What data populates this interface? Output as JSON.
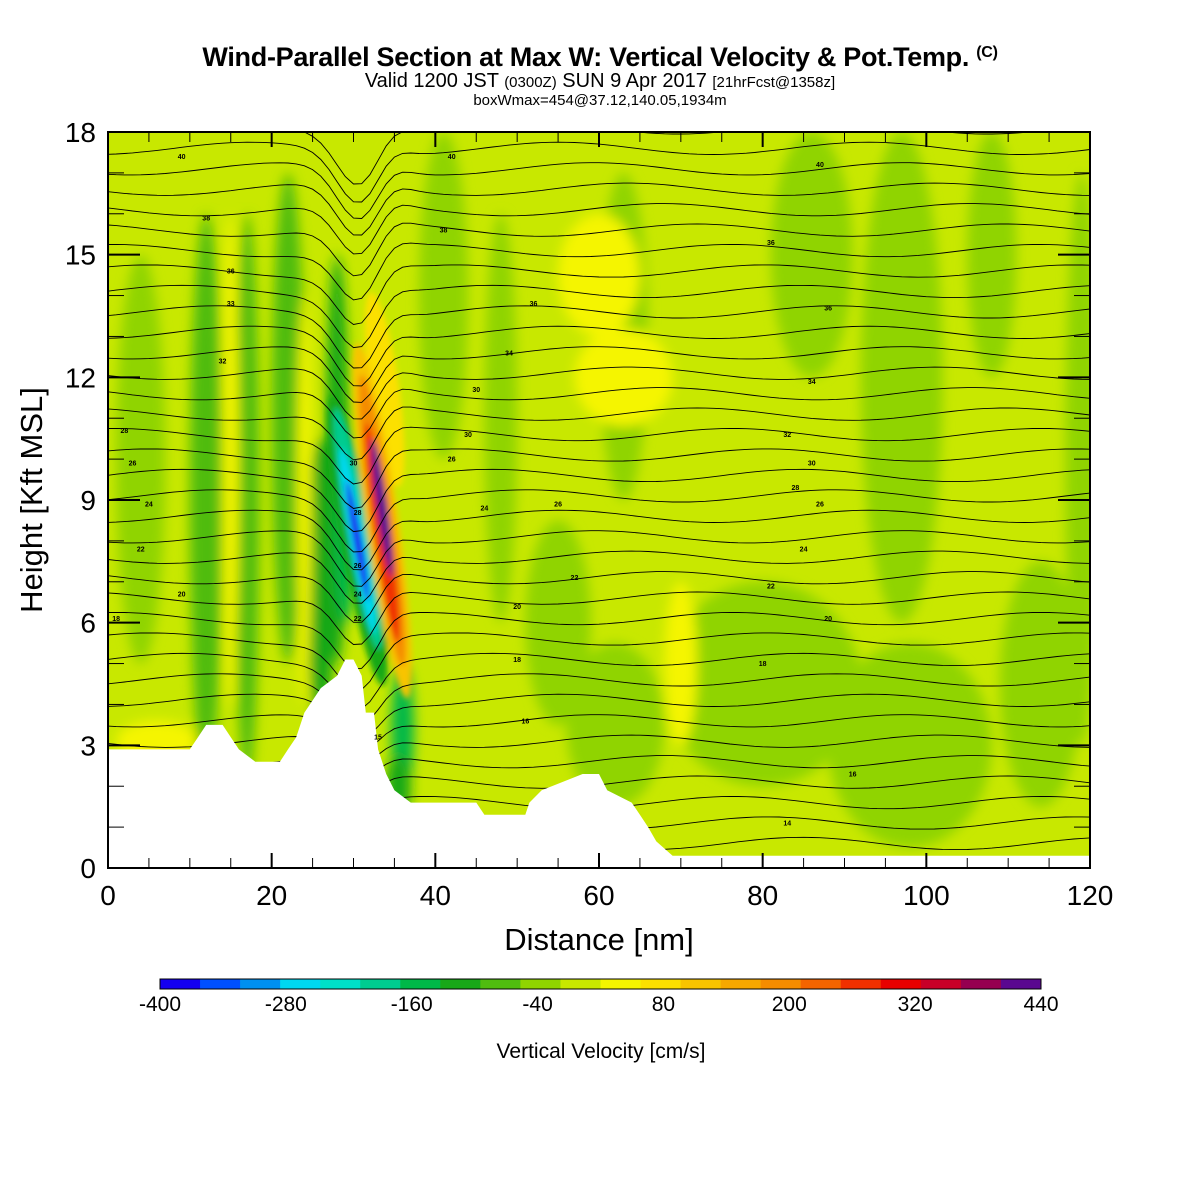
{
  "title": {
    "main": "Wind-Parallel Section at Max W: Vertical Velocity & Pot.Temp.",
    "copyright": "(C)",
    "valid_prefix": "Valid 1200 JST",
    "valid_utc": "(0300Z)",
    "valid_date": "SUN 9 Apr 2017",
    "forecast": "[21hrFcst@1358z]",
    "box": "boxWmax=454@37.12,140.05,1934m"
  },
  "chart_data": {
    "type": "heatmap",
    "xlabel": "Distance [nm]",
    "ylabel": "Height [Kft MSL]",
    "xlim": [
      0,
      120
    ],
    "ylim": [
      0,
      18
    ],
    "x_ticks": [
      0,
      20,
      40,
      60,
      80,
      100,
      120
    ],
    "y_ticks": [
      0,
      3,
      6,
      9,
      12,
      15,
      18
    ],
    "colorbar": {
      "title": "Vertical Velocity [cm/s]",
      "range": [
        -400,
        440
      ],
      "step": 40,
      "tick_labels": [
        "-400",
        "-280",
        "-160",
        "-40",
        "80",
        "200",
        "320",
        "440"
      ],
      "colors": [
        "#1400f0",
        "#0050ff",
        "#0090f0",
        "#00d8f0",
        "#00e0c8",
        "#00cc90",
        "#00b848",
        "#18a818",
        "#50bc10",
        "#90d400",
        "#c8e800",
        "#f5f500",
        "#fce000",
        "#f8c400",
        "#f7a800",
        "#f58c00",
        "#f46400",
        "#f03000",
        "#e80000",
        "#c80028",
        "#960050",
        "#5a0890"
      ]
    },
    "background_value_cm_s": 20,
    "field_features": [
      {
        "feature": "downdraft",
        "x_nm": 30.5,
        "z_kft": 8.0,
        "min_w_cm_s": -400
      },
      {
        "feature": "updraft",
        "x_nm": 33.5,
        "z_kft": 8.5,
        "max_w_cm_s": 454
      }
    ],
    "terrain_kft": [
      {
        "x": 0,
        "z": 2.9
      },
      {
        "x": 10,
        "z": 2.9
      },
      {
        "x": 11,
        "z": 3.2
      },
      {
        "x": 12,
        "z": 3.5
      },
      {
        "x": 14,
        "z": 3.5
      },
      {
        "x": 15,
        "z": 3.2
      },
      {
        "x": 16,
        "z": 2.9
      },
      {
        "x": 18,
        "z": 2.6
      },
      {
        "x": 20,
        "z": 2.6
      },
      {
        "x": 21,
        "z": 2.6
      },
      {
        "x": 22,
        "z": 2.9
      },
      {
        "x": 23,
        "z": 3.2
      },
      {
        "x": 24,
        "z": 3.8
      },
      {
        "x": 25,
        "z": 4.1
      },
      {
        "x": 26,
        "z": 4.4
      },
      {
        "x": 28,
        "z": 4.7
      },
      {
        "x": 29,
        "z": 5.1
      },
      {
        "x": 30,
        "z": 5.1
      },
      {
        "x": 31,
        "z": 4.7
      },
      {
        "x": 31.5,
        "z": 3.8
      },
      {
        "x": 32.5,
        "z": 3.8
      },
      {
        "x": 33,
        "z": 2.9
      },
      {
        "x": 34,
        "z": 2.3
      },
      {
        "x": 35,
        "z": 1.9
      },
      {
        "x": 37,
        "z": 1.6
      },
      {
        "x": 45,
        "z": 1.6
      },
      {
        "x": 46,
        "z": 1.3
      },
      {
        "x": 51,
        "z": 1.3
      },
      {
        "x": 51.5,
        "z": 1.6
      },
      {
        "x": 53,
        "z": 1.9
      },
      {
        "x": 58,
        "z": 2.3
      },
      {
        "x": 60,
        "z": 2.3
      },
      {
        "x": 61,
        "z": 1.9
      },
      {
        "x": 64,
        "z": 1.6
      },
      {
        "x": 65,
        "z": 1.3
      },
      {
        "x": 66,
        "z": 1.0
      },
      {
        "x": 67,
        "z": 0.65
      },
      {
        "x": 69,
        "z": 0.3
      },
      {
        "x": 70,
        "z": 0.3
      },
      {
        "x": 120,
        "z": 0.3
      }
    ],
    "theta_contour_labels": [
      {
        "text": "40",
        "x": 9,
        "z": 17.4
      },
      {
        "text": "40",
        "x": 42,
        "z": 17.4
      },
      {
        "text": "40",
        "x": 87,
        "z": 17.2
      },
      {
        "text": "38",
        "x": 12,
        "z": 15.9
      },
      {
        "text": "38",
        "x": 41,
        "z": 15.6
      },
      {
        "text": "36",
        "x": 81,
        "z": 15.3
      },
      {
        "text": "36",
        "x": 15,
        "z": 14.6
      },
      {
        "text": "36",
        "x": 52,
        "z": 13.8
      },
      {
        "text": "36",
        "x": 88,
        "z": 13.7
      },
      {
        "text": "33",
        "x": 15,
        "z": 13.8
      },
      {
        "text": "34",
        "x": 49,
        "z": 12.6
      },
      {
        "text": "34",
        "x": 86,
        "z": 11.9
      },
      {
        "text": "32",
        "x": 14,
        "z": 12.4
      },
      {
        "text": "30",
        "x": 45,
        "z": 11.7
      },
      {
        "text": "32",
        "x": 83,
        "z": 10.6
      },
      {
        "text": "28",
        "x": 2,
        "z": 10.7
      },
      {
        "text": "30",
        "x": 44,
        "z": 10.6
      },
      {
        "text": "30",
        "x": 86,
        "z": 9.9
      },
      {
        "text": "26",
        "x": 3,
        "z": 9.9
      },
      {
        "text": "26",
        "x": 42,
        "z": 10.0
      },
      {
        "text": "28",
        "x": 84,
        "z": 9.3
      },
      {
        "text": "24",
        "x": 5,
        "z": 8.9
      },
      {
        "text": "24",
        "x": 46,
        "z": 8.8
      },
      {
        "text": "26",
        "x": 55,
        "z": 8.9
      },
      {
        "text": "26",
        "x": 87,
        "z": 8.9
      },
      {
        "text": "22",
        "x": 4,
        "z": 7.8
      },
      {
        "text": "24",
        "x": 85,
        "z": 7.8
      },
      {
        "text": "20",
        "x": 9,
        "z": 6.7
      },
      {
        "text": "22",
        "x": 57,
        "z": 7.1
      },
      {
        "text": "22",
        "x": 81,
        "z": 6.9
      },
      {
        "text": "18",
        "x": 1,
        "z": 6.1
      },
      {
        "text": "20",
        "x": 50,
        "z": 6.4
      },
      {
        "text": "20",
        "x": 88,
        "z": 6.1
      },
      {
        "text": "18",
        "x": 50,
        "z": 5.1
      },
      {
        "text": "18",
        "x": 80,
        "z": 5.0
      },
      {
        "text": "16",
        "x": 51,
        "z": 3.6
      },
      {
        "text": "16",
        "x": 91,
        "z": 2.3
      },
      {
        "text": "14",
        "x": 83,
        "z": 1.1
      },
      {
        "text": "15",
        "x": 33,
        "z": 3.2
      },
      {
        "text": "30",
        "x": 30,
        "z": 9.9
      },
      {
        "text": "28",
        "x": 30.5,
        "z": 8.7
      },
      {
        "text": "26",
        "x": 30.5,
        "z": 7.4
      },
      {
        "text": "24",
        "x": 30.5,
        "z": 6.7
      },
      {
        "text": "22",
        "x": 30.5,
        "z": 6.1
      }
    ]
  }
}
